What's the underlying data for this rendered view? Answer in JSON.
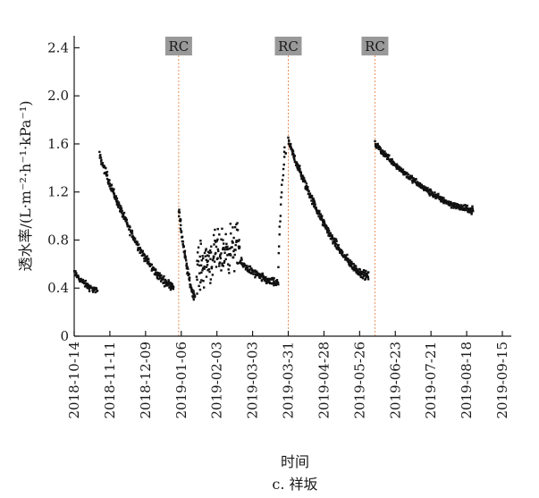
{
  "chart_data": {
    "type": "scatter",
    "title": "c. 祥坂",
    "xlabel": "时间",
    "ylabel": "透水率/(L·m⁻²·h⁻¹·kPa⁻¹)",
    "ylim": [
      0,
      2.5
    ],
    "y_ticks": [
      {
        "value": 0,
        "label": "0"
      },
      {
        "value": 0.4,
        "label": "0.4"
      },
      {
        "value": 0.8,
        "label": "0.8"
      },
      {
        "value": 1.2,
        "label": "1.2"
      },
      {
        "value": 1.6,
        "label": "1.6"
      },
      {
        "value": 2.0,
        "label": "2.0"
      },
      {
        "value": 2.4,
        "label": "2.4"
      }
    ],
    "x_range_days": [
      0,
      343
    ],
    "x_ticks": [
      {
        "day": 0,
        "label": "2018-10-14"
      },
      {
        "day": 28,
        "label": "2018-11-11"
      },
      {
        "day": 56,
        "label": "2018-12-09"
      },
      {
        "day": 84,
        "label": "2019-01-06"
      },
      {
        "day": 112,
        "label": "2019-02-03"
      },
      {
        "day": 140,
        "label": "2019-03-03"
      },
      {
        "day": 168,
        "label": "2019-03-31"
      },
      {
        "day": 196,
        "label": "2019-04-28"
      },
      {
        "day": 224,
        "label": "2019-05-26"
      },
      {
        "day": 252,
        "label": "2019-06-23"
      },
      {
        "day": 280,
        "label": "2019-07-21"
      },
      {
        "day": 308,
        "label": "2019-08-18"
      },
      {
        "day": 336,
        "label": "2019-09-15"
      }
    ],
    "rc_events": [
      {
        "label": "RC",
        "day": 82
      },
      {
        "label": "RC",
        "day": 168
      },
      {
        "label": "RC",
        "day": 236
      }
    ],
    "segments": [
      {
        "name": "initial",
        "start": [
          0,
          0.53
        ],
        "end": [
          18,
          0.38
        ],
        "count": 60,
        "noise": 0.04
      },
      {
        "name": "after-restart",
        "start": [
          20,
          1.5
        ],
        "end": [
          78,
          0.42
        ],
        "count": 260,
        "noise": 0.05
      },
      {
        "name": "rc1-decline",
        "start": [
          82,
          1.05
        ],
        "end": [
          95,
          0.33
        ],
        "count": 70,
        "noise": 0.05
      },
      {
        "name": "feb-scatter",
        "start": [
          96,
          0.55
        ],
        "end": [
          130,
          0.75
        ],
        "count": 150,
        "noise": 0.28
      },
      {
        "name": "march-decline",
        "start": [
          130,
          0.62
        ],
        "end": [
          160,
          0.44
        ],
        "count": 120,
        "noise": 0.05
      },
      {
        "name": "pre-rc2",
        "start": [
          160,
          0.6
        ],
        "end": [
          166,
          1.55
        ],
        "count": 20,
        "noise": 0.08
      },
      {
        "name": "rc2-decline",
        "start": [
          168,
          1.62
        ],
        "end": [
          231,
          0.5
        ],
        "count": 320,
        "noise": 0.05
      },
      {
        "name": "rc3-decline",
        "start": [
          236,
          1.6
        ],
        "end": [
          313,
          1.05
        ],
        "count": 340,
        "noise": 0.04
      }
    ],
    "marker_color": "#111111",
    "rc_line_color": "#e8925a",
    "rc_box_color": "#999999"
  }
}
